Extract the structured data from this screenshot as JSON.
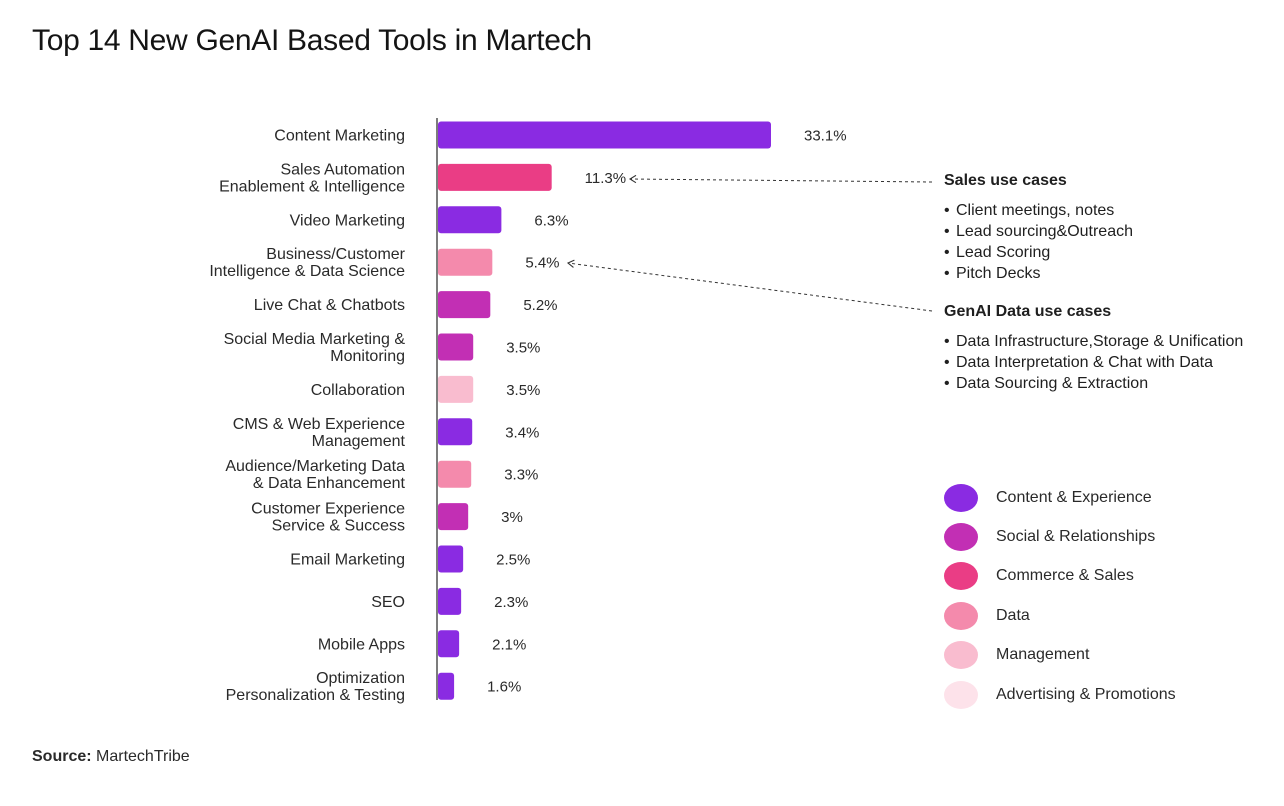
{
  "title": "Top 14 New GenAI Based Tools in Martech",
  "source": {
    "label": "Source:",
    "value": "MartechTribe"
  },
  "chart_data": {
    "type": "bar",
    "orientation": "horizontal",
    "title": "Top 14 New GenAI Based Tools in Martech",
    "xlabel": "",
    "ylabel": "",
    "xlim": [
      0,
      33.1
    ],
    "grid": false,
    "legend_position": "right",
    "categories": [
      [
        "Content Marketing"
      ],
      [
        "Sales Automation",
        "Enablement & Intelligence"
      ],
      [
        "Video Marketing"
      ],
      [
        "Business/Customer",
        "Intelligence & Data Science"
      ],
      [
        "Live Chat & Chatbots"
      ],
      [
        "Social Media Marketing &",
        "Monitoring"
      ],
      [
        "Collaboration"
      ],
      [
        "CMS & Web Experience",
        "Management"
      ],
      [
        "Audience/Marketing Data",
        "& Data Enhancement"
      ],
      [
        "Customer Experience",
        "Service & Success"
      ],
      [
        "Email Marketing"
      ],
      [
        "SEO"
      ],
      [
        "Mobile Apps"
      ],
      [
        "Optimization",
        "Personalization & Testing"
      ]
    ],
    "values": [
      33.1,
      11.3,
      6.3,
      5.4,
      5.2,
      3.5,
      3.5,
      3.4,
      3.3,
      3,
      2.5,
      2.3,
      2.1,
      1.6
    ],
    "value_labels": [
      "33.1%",
      "11.3%",
      "6.3%",
      "5.4%",
      "5.2%",
      "3.5%",
      "3.5%",
      "3.4%",
      "3.3%",
      "3%",
      "2.5%",
      "2.3%",
      "2.1%",
      "1.6%"
    ],
    "bar_groups": [
      "Content & Experience",
      "Commerce & Sales",
      "Content & Experience",
      "Data",
      "Social & Relationships",
      "Social & Relationships",
      "Management",
      "Content & Experience",
      "Data",
      "Social & Relationships",
      "Content & Experience",
      "Content & Experience",
      "Content & Experience",
      "Content & Experience"
    ],
    "legend": [
      {
        "name": "Content & Experience",
        "color": "#8a2be2"
      },
      {
        "name": "Social & Relationships",
        "color": "#c22fb4"
      },
      {
        "name": "Commerce & Sales",
        "color": "#ea3d85"
      },
      {
        "name": "Data",
        "color": "#f48aac"
      },
      {
        "name": "Management",
        "color": "#f9bccf"
      },
      {
        "name": "Advertising & Promotions",
        "color": "#fde2ea"
      }
    ],
    "annotations": [
      {
        "target_category": "Sales Automation Enablement & Intelligence",
        "heading": "Sales use cases",
        "items": [
          "Client meetings, notes",
          "Lead sourcing&Outreach",
          "Lead Scoring",
          "Pitch Decks"
        ]
      },
      {
        "target_category": "Business/Customer Intelligence & Data Science",
        "heading": "GenAI Data use cases",
        "items": [
          "Data Infrastructure,Storage & Unification",
          "Data Interpretation & Chat with Data",
          "Data Sourcing & Extraction"
        ]
      }
    ]
  }
}
